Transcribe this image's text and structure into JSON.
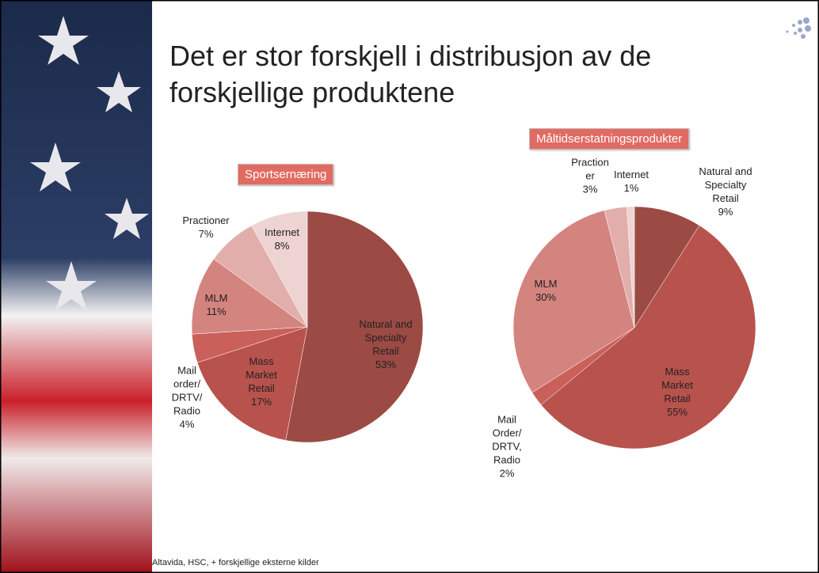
{
  "slide": {
    "title": "Det er stor forskjell i distribusjon av de forskjellige produktene",
    "source": "Altavida, HSC, + forskjellige eksterne kilder"
  },
  "chart_data": [
    {
      "type": "pie",
      "title": "Sportsernæring",
      "categories": [
        "Natural and Specialty Retail",
        "Mass Market Retail",
        "Mail order/ DRTV/ Radio",
        "MLM",
        "Practioner",
        "Internet"
      ],
      "values": [
        53,
        17,
        4,
        11,
        7,
        8
      ],
      "value_labels": [
        "53%",
        "17%",
        "4%",
        "11%",
        "7%",
        "8%"
      ],
      "colors": [
        "#9b4a44",
        "#b8524d",
        "#c9605a",
        "#d4847f",
        "#e2aeab",
        "#edd3d1"
      ]
    },
    {
      "type": "pie",
      "title": "Måltidserstatningsprodukter",
      "categories": [
        "Natural and Specialty Retail",
        "Mass Market Retail",
        "Mail Order/ DRTV, Radio",
        "MLM",
        "Praction er",
        "Internet"
      ],
      "values": [
        9,
        55,
        2,
        30,
        3,
        1
      ],
      "value_labels": [
        "9%",
        "55%",
        "2%",
        "30%",
        "3%",
        "1%"
      ],
      "colors": [
        "#9b4a44",
        "#b8524d",
        "#c9605a",
        "#d4847f",
        "#e2aeab",
        "#edd3d1"
      ]
    }
  ]
}
